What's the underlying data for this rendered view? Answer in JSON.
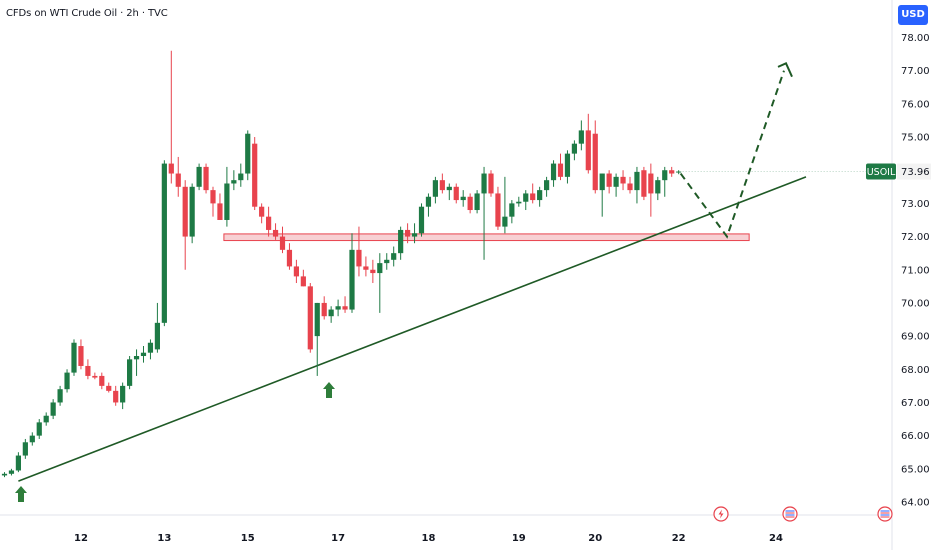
{
  "header": {
    "title": "CFDs on WTI Crude Oil · 2h · TVC",
    "currency": "USD"
  },
  "colors": {
    "up": "#1e7a45",
    "down": "#e8434d",
    "zone_fill": "#f6c8cb",
    "zone_stroke": "#e8434d",
    "trend": "#1f5a26",
    "projection": "#1f5a26",
    "arrow": "#2e7d3a",
    "badge_bg": "#1e7a45",
    "price_bg": "#f3f3f3"
  },
  "chart_data": {
    "type": "candlestick",
    "symbol": "USOIL",
    "last_price": "73.96",
    "y_ticks": [
      "64.00",
      "65.00",
      "66.00",
      "67.00",
      "68.00",
      "69.00",
      "70.00",
      "71.00",
      "72.00",
      "73.00",
      "74.00",
      "75.00",
      "76.00",
      "77.00",
      "78.00"
    ],
    "ylim": [
      63.95,
      78.15
    ],
    "x_ticks": [
      {
        "label": "12",
        "bar": 11
      },
      {
        "label": "13",
        "bar": 23
      },
      {
        "label": "15",
        "bar": 35
      },
      {
        "label": "17",
        "bar": 48
      },
      {
        "label": "18",
        "bar": 61
      },
      {
        "label": "19",
        "bar": 74
      },
      {
        "label": "20",
        "bar": 85
      },
      {
        "label": "22",
        "bar": 97
      },
      {
        "label": "24",
        "bar": 111
      }
    ],
    "candles": [
      [
        64.8,
        64.9,
        64.75,
        64.85
      ],
      [
        64.85,
        65.0,
        64.8,
        64.95
      ],
      [
        64.95,
        65.5,
        64.9,
        65.4
      ],
      [
        65.4,
        65.9,
        65.3,
        65.8
      ],
      [
        65.8,
        66.1,
        65.7,
        66.0
      ],
      [
        66.0,
        66.5,
        65.9,
        66.4
      ],
      [
        66.4,
        66.7,
        66.3,
        66.6
      ],
      [
        66.6,
        67.1,
        66.5,
        67.0
      ],
      [
        67.0,
        67.5,
        66.9,
        67.4
      ],
      [
        67.4,
        68.0,
        67.3,
        67.9
      ],
      [
        67.9,
        68.9,
        67.8,
        68.8
      ],
      [
        68.7,
        68.9,
        68.0,
        68.1
      ],
      [
        68.1,
        68.3,
        67.7,
        67.8
      ],
      [
        67.8,
        67.9,
        67.7,
        67.75
      ],
      [
        67.8,
        67.9,
        67.4,
        67.5
      ],
      [
        67.5,
        67.6,
        67.3,
        67.35
      ],
      [
        67.35,
        67.5,
        66.9,
        67.0
      ],
      [
        67.0,
        67.6,
        66.8,
        67.5
      ],
      [
        67.5,
        68.4,
        67.4,
        68.3
      ],
      [
        68.3,
        68.6,
        67.8,
        68.4
      ],
      [
        68.4,
        68.7,
        68.2,
        68.5
      ],
      [
        68.5,
        68.9,
        68.3,
        68.8
      ],
      [
        68.6,
        70.0,
        68.5,
        69.4
      ],
      [
        69.4,
        74.3,
        69.3,
        74.2
      ],
      [
        74.2,
        77.6,
        73.6,
        73.9
      ],
      [
        73.9,
        74.4,
        73.2,
        73.5
      ],
      [
        73.5,
        73.7,
        71.0,
        72.0
      ],
      [
        72.0,
        73.6,
        71.8,
        73.5
      ],
      [
        73.5,
        74.2,
        73.4,
        74.1
      ],
      [
        74.1,
        74.2,
        73.3,
        73.4
      ],
      [
        73.4,
        73.5,
        72.6,
        73.0
      ],
      [
        73.0,
        73.3,
        72.5,
        72.5
      ],
      [
        72.5,
        74.1,
        72.3,
        73.6
      ],
      [
        73.6,
        74.0,
        73.4,
        73.7
      ],
      [
        73.7,
        74.2,
        73.5,
        73.9
      ],
      [
        73.9,
        75.2,
        73.7,
        75.1
      ],
      [
        74.8,
        75.0,
        72.8,
        72.9
      ],
      [
        72.9,
        73.0,
        72.4,
        72.6
      ],
      [
        72.6,
        72.9,
        72.0,
        72.2
      ],
      [
        72.2,
        72.4,
        71.9,
        72.0
      ],
      [
        72.0,
        72.3,
        71.5,
        71.6
      ],
      [
        71.6,
        71.8,
        71.0,
        71.1
      ],
      [
        71.1,
        71.3,
        70.6,
        70.8
      ],
      [
        70.8,
        71.0,
        70.5,
        70.5
      ],
      [
        70.5,
        70.6,
        68.5,
        68.6
      ],
      [
        69.0,
        70.0,
        67.8,
        70.0
      ],
      [
        70.0,
        70.2,
        69.5,
        69.6
      ],
      [
        69.6,
        69.9,
        69.4,
        69.8
      ],
      [
        69.8,
        70.1,
        69.6,
        69.9
      ],
      [
        69.9,
        70.2,
        69.7,
        69.8
      ],
      [
        69.8,
        72.1,
        69.7,
        71.6
      ],
      [
        71.6,
        72.3,
        70.8,
        71.1
      ],
      [
        71.1,
        71.4,
        70.8,
        71.0
      ],
      [
        71.0,
        71.3,
        70.6,
        70.9
      ],
      [
        70.9,
        71.5,
        69.7,
        71.2
      ],
      [
        71.2,
        71.5,
        71.0,
        71.3
      ],
      [
        71.3,
        71.7,
        71.1,
        71.5
      ],
      [
        71.5,
        72.3,
        71.3,
        72.2
      ],
      [
        72.2,
        72.4,
        71.8,
        72.0
      ],
      [
        72.0,
        72.4,
        71.8,
        72.1
      ],
      [
        72.1,
        73.0,
        72.0,
        72.9
      ],
      [
        72.9,
        73.3,
        72.6,
        73.2
      ],
      [
        73.2,
        73.8,
        73.0,
        73.7
      ],
      [
        73.7,
        73.9,
        73.3,
        73.4
      ],
      [
        73.4,
        73.6,
        73.1,
        73.5
      ],
      [
        73.5,
        73.6,
        73.0,
        73.1
      ],
      [
        73.1,
        73.4,
        72.9,
        73.2
      ],
      [
        73.2,
        73.3,
        72.7,
        72.8
      ],
      [
        72.8,
        73.4,
        72.7,
        73.3
      ],
      [
        73.3,
        74.1,
        71.3,
        73.9
      ],
      [
        73.9,
        74.0,
        73.2,
        73.3
      ],
      [
        73.3,
        73.5,
        72.2,
        72.3
      ],
      [
        72.3,
        73.8,
        72.1,
        72.6
      ],
      [
        72.6,
        73.1,
        72.4,
        73.0
      ],
      [
        73.0,
        73.2,
        72.9,
        73.05
      ],
      [
        73.05,
        73.4,
        72.8,
        73.3
      ],
      [
        73.3,
        73.6,
        73.0,
        73.1
      ],
      [
        73.1,
        73.5,
        72.9,
        73.4
      ],
      [
        73.4,
        73.8,
        73.2,
        73.7
      ],
      [
        73.7,
        74.3,
        73.5,
        74.2
      ],
      [
        74.2,
        74.5,
        73.7,
        73.8
      ],
      [
        73.8,
        74.6,
        73.6,
        74.5
      ],
      [
        74.5,
        74.9,
        74.3,
        74.8
      ],
      [
        74.8,
        75.5,
        74.6,
        75.2
      ],
      [
        75.2,
        75.7,
        73.9,
        74.0
      ],
      [
        75.1,
        75.5,
        73.3,
        73.4
      ],
      [
        73.4,
        73.9,
        72.6,
        73.9
      ],
      [
        73.9,
        74.0,
        73.3,
        73.5
      ],
      [
        73.5,
        73.9,
        73.2,
        73.8
      ],
      [
        73.8,
        74.0,
        73.4,
        73.6
      ],
      [
        73.6,
        73.8,
        73.3,
        73.4
      ],
      [
        73.4,
        74.1,
        73.0,
        73.95
      ],
      [
        74.0,
        74.1,
        73.1,
        73.2
      ],
      [
        73.9,
        74.2,
        72.6,
        73.3
      ],
      [
        73.3,
        73.8,
        73.1,
        73.7
      ],
      [
        73.7,
        74.1,
        73.2,
        74.0
      ],
      [
        74.0,
        74.1,
        73.8,
        73.9
      ],
      [
        73.96,
        74.0,
        73.88,
        73.96
      ]
    ],
    "zone": {
      "y_low": 71.88,
      "y_high": 72.08
    },
    "trend_line": [
      [
        64.63
      ],
      [
        73.8
      ]
    ],
    "projection": [
      [
        73.9,
        72.0
      ],
      [
        77.0,
        77.1
      ]
    ]
  }
}
